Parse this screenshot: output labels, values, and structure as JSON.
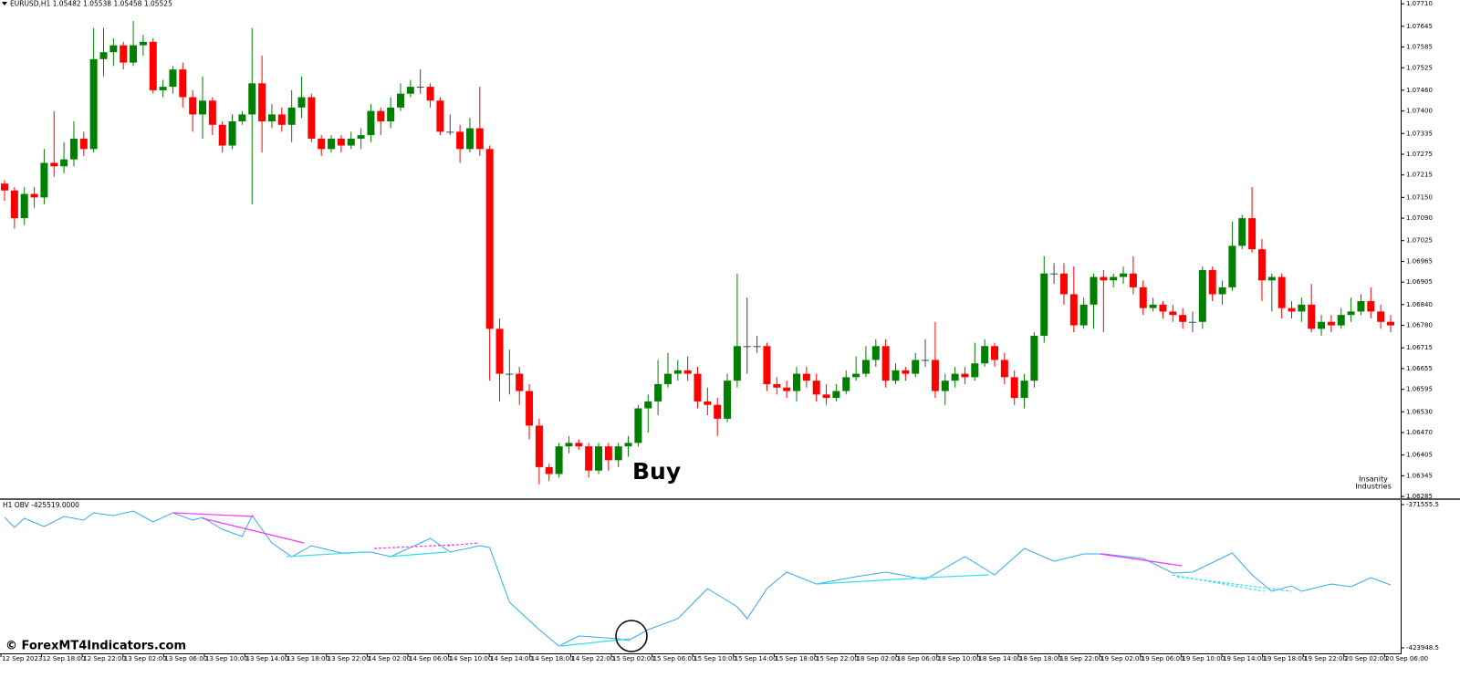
{
  "chart_data": [
    {
      "type": "candlestick",
      "title": "EURUSD,H1  1.05482 1.05538 1.05458 1.05525",
      "xlim": [
        0,
        140
      ],
      "ylim": [
        1.0628,
        1.07721
      ],
      "yticks": [
        {
          "value": 1.0771,
          "label": "1.07710"
        },
        1.07645,
        1.07585,
        1.07525,
        {
          "value": 1.0746,
          "label": "1.07460"
        },
        {
          "value": 1.074,
          "label": "1.07400"
        },
        1.07335,
        1.07275,
        1.07215,
        {
          "value": 1.0715,
          "label": "1.07150"
        },
        {
          "value": 1.0709,
          "label": "1.07090"
        },
        1.07025,
        1.06965,
        1.06905,
        {
          "value": 1.0684,
          "label": "1.06840"
        },
        {
          "value": 1.0678,
          "label": "1.06780"
        },
        1.06715,
        1.06655,
        1.06595,
        {
          "value": 1.0653,
          "label": "1.06530"
        },
        {
          "value": 1.0647,
          "label": "1.06470"
        },
        1.06405,
        1.06345,
        1.06285
      ],
      "xtick_labels": [
        "12 Sep 2023",
        "12 Sep 18:00",
        "12 Sep 22:00",
        "13 Sep 02:00",
        "13 Sep 06:00",
        "13 Sep 10:00",
        "13 Sep 14:00",
        "13 Sep 18:00",
        "13 Sep 22:00",
        "14 Sep 02:00",
        "14 Sep 06:00",
        "14 Sep 10:00",
        "14 Sep 14:00",
        "14 Sep 18:00",
        "14 Sep 22:00",
        "15 Sep 02:00",
        "15 Sep 06:00",
        "15 Sep 10:00",
        "15 Sep 14:00",
        "15 Sep 18:00",
        "15 Sep 22:00",
        "18 Sep 02:00",
        "18 Sep 06:00",
        "18 Sep 10:00",
        "18 Sep 14:00",
        "18 Sep 18:00",
        "18 Sep 22:00",
        "19 Sep 02:00",
        "19 Sep 06:00",
        "19 Sep 10:00",
        "19 Sep 14:00",
        "19 Sep 18:00",
        "19 Sep 22:00",
        "20 Sep 02:00",
        "20 Sep 06:00"
      ],
      "up_color": "#008000",
      "down_color": "#ff0000",
      "doji_color": "#444444",
      "open": [
        1.0719,
        1.0717,
        1.0709,
        1.0716,
        1.0715,
        1.0725,
        1.0724,
        1.0726,
        1.0732,
        1.0729,
        1.0755,
        1.0757,
        1.0759,
        1.0754,
        1.0759,
        1.076,
        1.0746,
        1.0747,
        1.0752,
        1.0744,
        1.0739,
        1.0743,
        1.0736,
        1.073,
        1.0737,
        1.0739,
        1.0748,
        1.0737,
        1.0739,
        1.0736,
        1.0741,
        1.0744,
        1.0732,
        1.0729,
        1.0732,
        1.073,
        1.0732,
        1.0733,
        1.074,
        1.0737,
        1.0741,
        1.0745,
        1.0747,
        1.0747,
        1.0743,
        1.0734,
        1.0734,
        1.0729,
        1.0735,
        1.0729,
        1.0677,
        1.0664,
        1.0664,
        1.0659,
        1.0649,
        1.0637,
        1.0635,
        1.0643,
        1.0644,
        1.0643,
        1.0636,
        1.0643,
        1.0639,
        1.0643,
        1.0644,
        1.0654,
        1.0656,
        1.0661,
        1.0664,
        1.0665,
        1.0664,
        1.0656,
        1.0655,
        1.0651,
        1.0662,
        1.0672,
        1.0672,
        1.0672,
        1.0661,
        1.066,
        1.0659,
        1.0664,
        1.0662,
        1.0658,
        1.0657,
        1.0659,
        1.0663,
        1.0664,
        1.0668,
        1.0672,
        1.0662,
        1.0665,
        1.0664,
        1.0668,
        1.0668,
        1.0659,
        1.0662,
        1.0664,
        1.0663,
        1.0667,
        1.0672,
        1.0668,
        1.0663,
        1.0657,
        1.0662,
        1.0675,
        1.0693,
        1.0693,
        1.0687,
        1.0678,
        1.0684,
        1.0692,
        1.0691,
        1.0692,
        1.0693,
        1.0689,
        1.0683,
        1.0684,
        1.0682,
        1.0681,
        1.0679,
        1.0679,
        1.0694,
        1.0687,
        1.0689,
        1.0701,
        1.0709,
        1.07,
        1.0691,
        1.0692,
        1.0683,
        1.0682,
        1.0684,
        1.0677,
        1.0679,
        1.0678,
        1.0681,
        1.0682,
        1.0685,
        1.0682,
        1.0679
      ],
      "high": [
        1.072,
        1.0718,
        1.0718,
        1.0718,
        1.0729,
        1.074,
        1.0731,
        1.0737,
        1.0734,
        1.0764,
        1.0764,
        1.0761,
        1.076,
        1.0766,
        1.0762,
        1.0761,
        1.0749,
        1.0753,
        1.0754,
        1.0746,
        1.075,
        1.0744,
        1.0737,
        1.0739,
        1.074,
        1.0764,
        1.0756,
        1.0742,
        1.0741,
        1.0746,
        1.075,
        1.0745,
        1.0733,
        1.0733,
        1.0733,
        1.0734,
        1.0735,
        1.0742,
        1.0741,
        1.0744,
        1.0748,
        1.0749,
        1.0752,
        1.0748,
        1.0744,
        1.0739,
        1.0736,
        1.0738,
        1.0747,
        1.073,
        1.068,
        1.0671,
        1.0666,
        1.0661,
        1.0651,
        1.0638,
        1.0644,
        1.0646,
        1.0645,
        1.0644,
        1.0644,
        1.0644,
        1.0644,
        1.0646,
        1.0655,
        1.0658,
        1.0668,
        1.067,
        1.0668,
        1.0669,
        1.0666,
        1.066,
        1.0657,
        1.0664,
        1.0693,
        1.0686,
        1.0675,
        1.0673,
        1.0663,
        1.0662,
        1.0666,
        1.0666,
        1.0664,
        1.0661,
        1.0661,
        1.0665,
        1.0669,
        1.0672,
        1.0674,
        1.0674,
        1.0667,
        1.0666,
        1.067,
        1.0674,
        1.0679,
        1.0664,
        1.0666,
        1.0666,
        1.0673,
        1.0674,
        1.0673,
        1.067,
        1.0665,
        1.0664,
        1.0676,
        1.0698,
        1.0696,
        1.0696,
        1.0695,
        1.0686,
        1.0693,
        1.0694,
        1.0693,
        1.0695,
        1.0698,
        1.0691,
        1.0686,
        1.0685,
        1.0684,
        1.0683,
        1.0682,
        1.0695,
        1.0695,
        1.0691,
        1.0708,
        1.071,
        1.0718,
        1.0703,
        1.0693,
        1.0693,
        1.0685,
        1.0686,
        1.069,
        1.0681,
        1.0681,
        1.0683,
        1.0686,
        1.0687,
        1.0689,
        1.0684,
        1.0681
      ],
      "low": [
        1.0714,
        1.0706,
        1.0707,
        1.0712,
        1.0713,
        1.0721,
        1.0722,
        1.0724,
        1.0727,
        1.0728,
        1.075,
        1.0753,
        1.0752,
        1.0753,
        1.0756,
        1.0745,
        1.0744,
        1.0745,
        1.0741,
        1.0734,
        1.0732,
        1.0733,
        1.0728,
        1.0729,
        1.0736,
        1.0713,
        1.0728,
        1.0735,
        1.0734,
        1.0731,
        1.0738,
        1.0731,
        1.0727,
        1.0728,
        1.0728,
        1.0729,
        1.0729,
        1.0731,
        1.0733,
        1.0735,
        1.074,
        1.0744,
        1.0745,
        1.0741,
        1.0733,
        1.0733,
        1.0725,
        1.0728,
        1.0727,
        1.0662,
        1.0656,
        1.0658,
        1.0655,
        1.0645,
        1.0632,
        1.0633,
        1.0634,
        1.0641,
        1.0642,
        1.0634,
        1.0635,
        1.0636,
        1.0637,
        1.064,
        1.0643,
        1.0647,
        1.0652,
        1.066,
        1.0662,
        1.0662,
        1.0654,
        1.0652,
        1.0646,
        1.065,
        1.066,
        1.0664,
        1.067,
        1.0659,
        1.0658,
        1.0657,
        1.0656,
        1.066,
        1.0656,
        1.0655,
        1.0656,
        1.0658,
        1.0662,
        1.0663,
        1.0666,
        1.066,
        1.0661,
        1.0662,
        1.0663,
        1.0666,
        1.0657,
        1.0655,
        1.066,
        1.0661,
        1.0662,
        1.0666,
        1.0666,
        1.0661,
        1.0655,
        1.0654,
        1.066,
        1.0673,
        1.069,
        1.0684,
        1.0676,
        1.0677,
        1.0677,
        1.0676,
        1.0689,
        1.069,
        1.0687,
        1.0681,
        1.0682,
        1.068,
        1.0679,
        1.0677,
        1.0676,
        1.0677,
        1.0685,
        1.0684,
        1.0688,
        1.07,
        1.0699,
        1.0685,
        1.0682,
        1.068,
        1.068,
        1.0679,
        1.0676,
        1.0675,
        1.0676,
        1.0677,
        1.0679,
        1.0681,
        1.068,
        1.0677,
        1.0676
      ],
      "close": [
        1.0717,
        1.0709,
        1.0716,
        1.0715,
        1.0725,
        1.0724,
        1.0726,
        1.0732,
        1.0729,
        1.0755,
        1.0757,
        1.0759,
        1.0754,
        1.0759,
        1.076,
        1.0746,
        1.0747,
        1.0752,
        1.0744,
        1.0739,
        1.0743,
        1.0736,
        1.073,
        1.0737,
        1.0739,
        1.0748,
        1.0737,
        1.0739,
        1.0736,
        1.0741,
        1.0744,
        1.0732,
        1.0729,
        1.0732,
        1.073,
        1.0732,
        1.0733,
        1.074,
        1.0737,
        1.0741,
        1.0745,
        1.0747,
        1.0747,
        1.0743,
        1.0734,
        1.0734,
        1.0729,
        1.0735,
        1.0729,
        1.0677,
        1.0664,
        1.0664,
        1.0659,
        1.0649,
        1.0637,
        1.0635,
        1.0643,
        1.0644,
        1.0643,
        1.0636,
        1.0643,
        1.0639,
        1.0643,
        1.0644,
        1.0654,
        1.0656,
        1.0661,
        1.0664,
        1.0665,
        1.0664,
        1.0656,
        1.0655,
        1.0651,
        1.0662,
        1.0672,
        1.0672,
        1.0672,
        1.0661,
        1.066,
        1.0659,
        1.0664,
        1.0662,
        1.0658,
        1.0657,
        1.0659,
        1.0663,
        1.0664,
        1.0668,
        1.0672,
        1.0662,
        1.0665,
        1.0664,
        1.0668,
        1.0668,
        1.0659,
        1.0662,
        1.0664,
        1.0663,
        1.0667,
        1.0672,
        1.0668,
        1.0663,
        1.0657,
        1.0662,
        1.0675,
        1.0693,
        1.0693,
        1.0687,
        1.0678,
        1.0684,
        1.0692,
        1.0691,
        1.0692,
        1.0693,
        1.0689,
        1.0683,
        1.0684,
        1.0682,
        1.0681,
        1.0679,
        1.0679,
        1.0694,
        1.0687,
        1.0689,
        1.0701,
        1.0709,
        1.07,
        1.0691,
        1.0692,
        1.0683,
        1.0682,
        1.0684,
        1.0677,
        1.0679,
        1.0678,
        1.0681,
        1.0682,
        1.0685,
        1.0682,
        1.0679,
        1.0678
      ],
      "annotation": "Buy"
    },
    {
      "type": "line",
      "title": "H1 OBV  -425519.0000",
      "color": "#33aaee",
      "xlim": [
        0,
        140
      ],
      "ylim": [
        -423948.5,
        -371555.5
      ],
      "yticks": [
        -371555.5,
        -423948.5
      ],
      "x": [
        0,
        1,
        2,
        4,
        6,
        8,
        9,
        11,
        13,
        15,
        17,
        19,
        20,
        22,
        24,
        25,
        27,
        29,
        31,
        34,
        37,
        39,
        43,
        45,
        48,
        49,
        51,
        54,
        56,
        58,
        62,
        63,
        65,
        68,
        71,
        74,
        75,
        77,
        79,
        82,
        86,
        89,
        93,
        97,
        100,
        103,
        106,
        109,
        111,
        115,
        118,
        120,
        124,
        126,
        128,
        130,
        131,
        134,
        136,
        138,
        140
      ],
      "values": [
        -376228,
        -379899,
        -376561,
        -379564,
        -375894,
        -377229,
        -374559,
        -375560,
        -373892,
        -377896,
        -374559,
        -377229,
        -376228,
        -380566,
        -383236,
        -375560,
        -385571,
        -390577,
        -386573,
        -389242,
        -388908,
        -390577,
        -383903,
        -388908,
        -386573,
        -387240,
        -407262,
        -417273,
        -423280,
        -419609,
        -420610,
        -421277,
        -417273,
        -413269,
        -402256,
        -408930,
        -413269,
        -402256,
        -396250,
        -400588,
        -397918,
        -396250,
        -398919,
        -390577,
        -397251,
        -387574,
        -392245,
        -389576,
        -389576,
        -391244,
        -396584,
        -396250,
        -389242,
        -397251,
        -403258,
        -401255,
        -403258,
        -400588,
        -401589,
        -398252,
        -400922
      ]
    }
  ],
  "watermark": "© ForexMT4Indicators.com",
  "logo": [
    "Insanity",
    "Industries"
  ]
}
